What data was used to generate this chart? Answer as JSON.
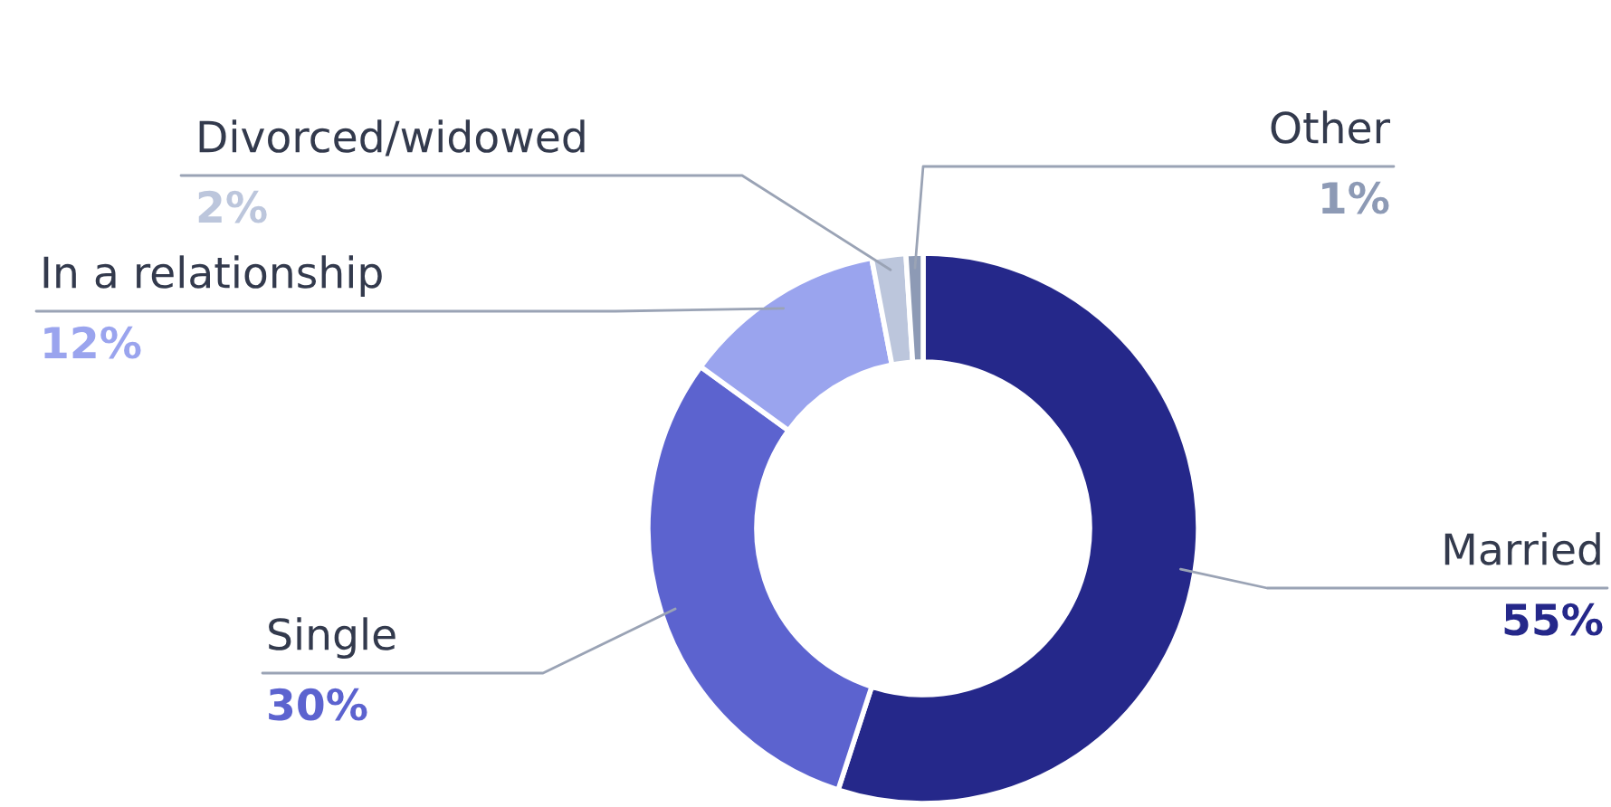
{
  "chart_data": {
    "type": "donut",
    "categories": [
      "Married",
      "Single",
      "In a relationship",
      "Divorced/widowed",
      "Other"
    ],
    "values": [
      55,
      30,
      12,
      2,
      1
    ],
    "colors": [
      "#25288a",
      "#5c63cf",
      "#9aa4ee",
      "#bcc6dc",
      "#8d9ab5"
    ],
    "value_labels": [
      "55%",
      "30%",
      "12%",
      "2%",
      "1%"
    ]
  }
}
